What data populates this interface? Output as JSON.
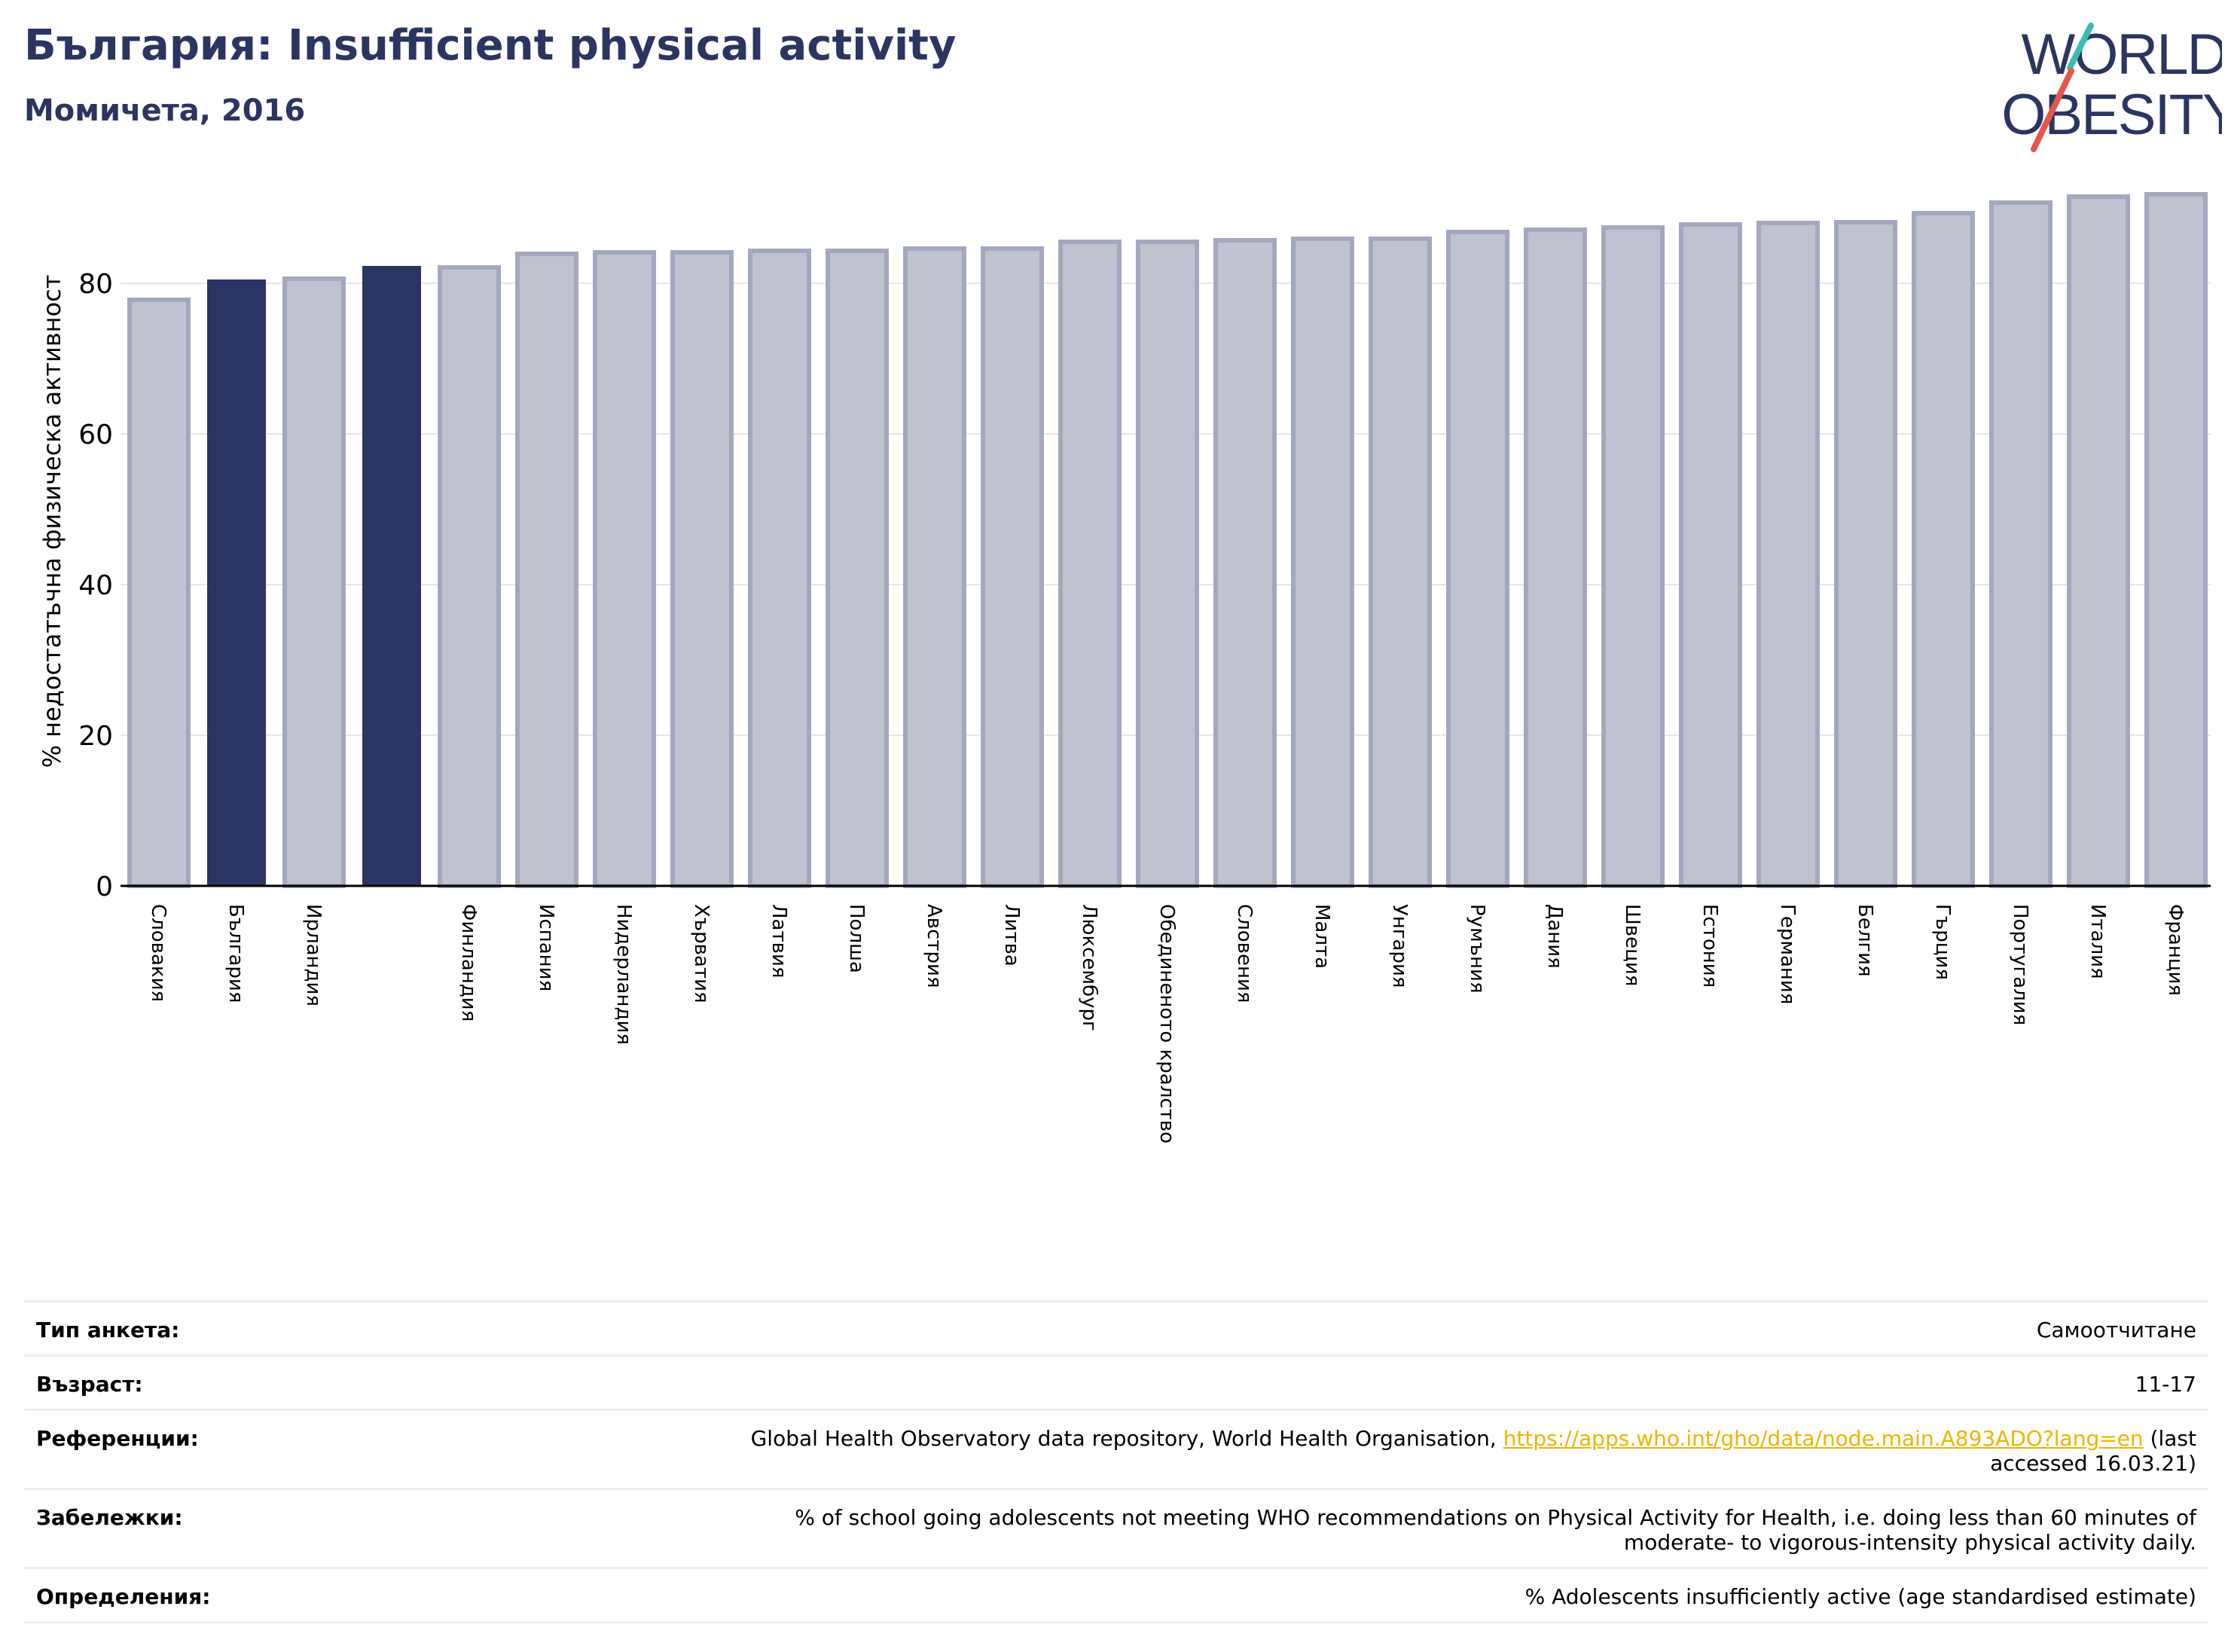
{
  "header": {
    "title": "България: Insufficient physical activity",
    "subtitle": "Момичета, 2016"
  },
  "logo": {
    "line1": "WORLD",
    "line2": "OBESITY",
    "text_color": "#2b3562",
    "slash_colors": [
      "#3bbcb5",
      "#e4574b"
    ]
  },
  "colors": {
    "highlight_bar": "#2b3562",
    "other_bar": "#bfc2cf",
    "other_bar_edge": "#a4a8bf",
    "grid": "#e6e6ea"
  },
  "chart_data": {
    "type": "bar",
    "ylabel": "% недостатъчна физическа активност",
    "ylim": [
      0,
      95
    ],
    "yticks": [
      0,
      20,
      40,
      60,
      80
    ],
    "grid": true,
    "categories": [
      "Словакия",
      "България",
      "Ирландия",
      "",
      "Финландия",
      "Испания",
      "Нидерландия",
      "Хърватия",
      "Латвия",
      "Полша",
      "Австрия",
      "Литва",
      "Люксембург",
      "Обединеното кралство",
      "Словения",
      "Малта",
      "Унгария",
      "Румъния",
      "Дания",
      "Швеция",
      "Естония",
      "Германия",
      "Белгия",
      "Гърция",
      "Португалия",
      "Италия",
      "Франция"
    ],
    "values": [
      77.8,
      80.5,
      80.6,
      82.3,
      82.1,
      83.9,
      84.1,
      84.1,
      84.3,
      84.3,
      84.6,
      84.6,
      85.5,
      85.5,
      85.7,
      85.9,
      85.9,
      86.8,
      87.1,
      87.4,
      87.8,
      88.0,
      88.1,
      89.3,
      90.7,
      91.5,
      91.8
    ],
    "highlighted": [
      false,
      true,
      false,
      true,
      false,
      false,
      false,
      false,
      false,
      false,
      false,
      false,
      false,
      false,
      false,
      false,
      false,
      false,
      false,
      false,
      false,
      false,
      false,
      false,
      false,
      false,
      false
    ]
  },
  "meta": {
    "survey_type_label": "Тип анкета:",
    "survey_type_value": "Самоотчитане",
    "age_label": "Възраст:",
    "age_value": "11-17",
    "references_label": "Референции:",
    "references_text": "Global Health Observatory data repository, World Health Organisation, ",
    "references_link": "https://apps.who.int/gho/data/node.main.A893ADO?lang=en",
    "references_tail": " (last accessed 16.03.21)",
    "notes_label": "Забележки:",
    "notes_value": "% of school going adolescents not meeting WHO recommendations on Physical Activity for Health, i.e. doing less than 60 minutes of moderate- to vigorous-intensity physical activity daily.",
    "definitions_label": "Определения:",
    "definitions_value": "% Adolescents insufficiently active (age standardised estimate)"
  }
}
